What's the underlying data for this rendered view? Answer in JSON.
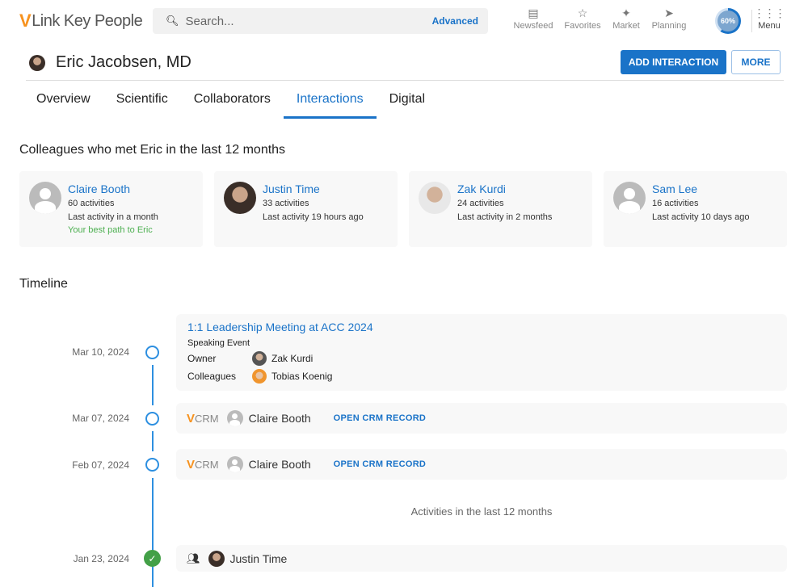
{
  "app": {
    "logo_mark": "V",
    "logo_text": "Link Key People"
  },
  "search": {
    "placeholder": "Search...",
    "advanced": "Advanced"
  },
  "nav": [
    {
      "label": "Newsfeed",
      "icon": "newsfeed-icon"
    },
    {
      "label": "Favorites",
      "icon": "star-icon"
    },
    {
      "label": "Market",
      "icon": "market-icon"
    },
    {
      "label": "Planning",
      "icon": "compass-icon"
    }
  ],
  "progress": {
    "value": 60,
    "label": "60%"
  },
  "menu": {
    "label": "Menu"
  },
  "profile": {
    "name": "Eric Jacobsen, MD",
    "add_interaction": "ADD INTERACTION",
    "more": "MORE"
  },
  "tabs": [
    {
      "label": "Overview"
    },
    {
      "label": "Scientific"
    },
    {
      "label": "Collaborators"
    },
    {
      "label": "Interactions",
      "active": true
    },
    {
      "label": "Digital"
    }
  ],
  "colleagues": {
    "heading": "Colleagues who met Eric in the last 12 months",
    "items": [
      {
        "name": "Claire Booth",
        "activities": "60 activities",
        "last": "Last activity in a month",
        "note": "Your best path to Eric"
      },
      {
        "name": "Justin Time",
        "activities": "33 activities",
        "last": "Last activity 19 hours ago"
      },
      {
        "name": "Zak Kurdi",
        "activities": "24 activities",
        "last": "Last activity in 2 months"
      },
      {
        "name": "Sam Lee",
        "activities": "16 activities",
        "last": "Last activity 10 days ago"
      }
    ]
  },
  "timeline": {
    "heading": "Timeline",
    "event": {
      "date": "Mar 10, 2024",
      "title": "1:1 Leadership Meeting at ACC 2024",
      "type": "Speaking Event",
      "owner_label": "Owner",
      "owner": "Zak Kurdi",
      "colleagues_label": "Colleagues",
      "colleague": "Tobias Koenig"
    },
    "crm": [
      {
        "date": "Mar 07, 2024",
        "logo_v": "V",
        "logo": "CRM",
        "name": "Claire Booth",
        "link": "OPEN CRM RECORD"
      },
      {
        "date": "Feb 07, 2024",
        "logo_v": "V",
        "logo": "CRM",
        "name": "Claire Booth",
        "link": "OPEN CRM RECORD"
      }
    ],
    "divider": "Activities in the last 12 months",
    "meeting": {
      "date": "Jan 23, 2024",
      "name": "Justin Time",
      "status": "completed"
    }
  },
  "colors": {
    "accent": "#1a73c8",
    "brand": "#f7921e",
    "success": "#43a047"
  }
}
